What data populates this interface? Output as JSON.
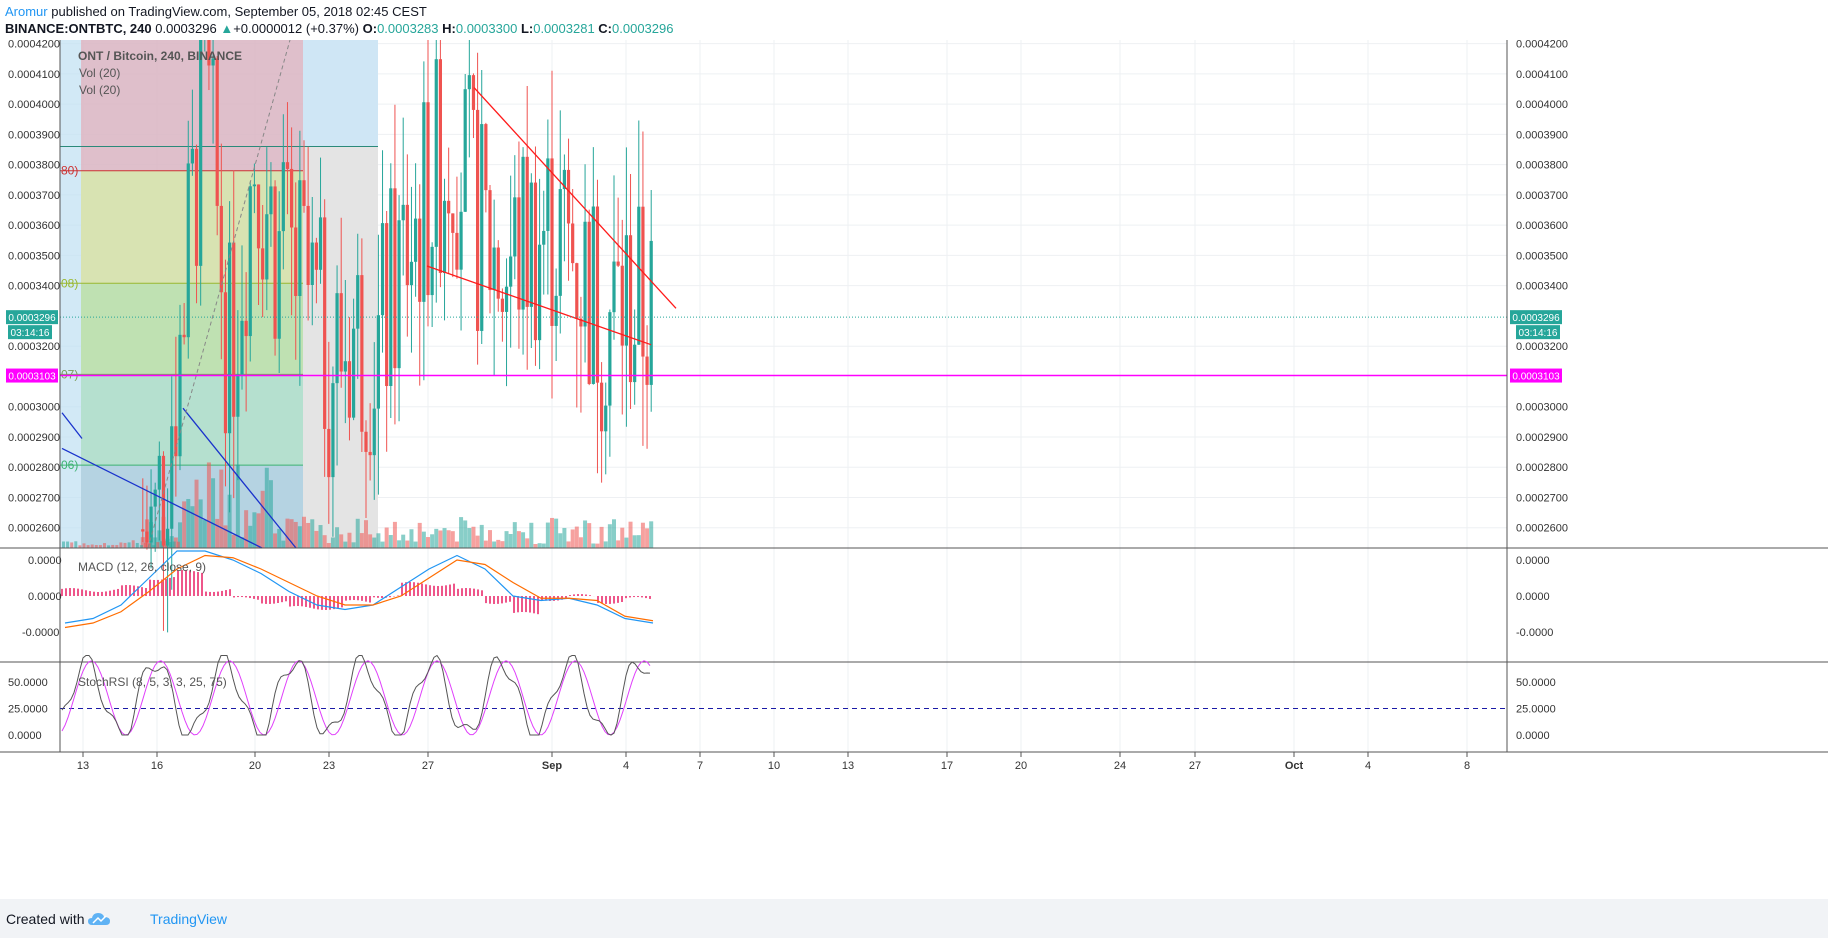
{
  "header": {
    "author": "Aromur",
    "published_text": "published on TradingView.com, September 05, 2018 02:45 CEST",
    "symbol_line": "BINANCE:ONTBTC, 240",
    "price": "0.0003296",
    "change": "+0.0000012 (+0.37%)",
    "o_label": "O:",
    "o_value": "0.0003283",
    "h_label": "H:",
    "h_value": "0.0003300",
    "l_label": "L:",
    "l_value": "0.0003281",
    "c_label": "C:",
    "c_value": "0.0003296"
  },
  "footer": {
    "created_with": "Created with",
    "brand": "TradingView"
  },
  "colors": {
    "up": "#26a69a",
    "down": "#ef5350",
    "magenta": "#ff00ff",
    "trend": "#ff1a1a",
    "blue": "#1a33cc",
    "macd": "#2196f3",
    "signal": "#ff6d00",
    "hist": "#e91e63",
    "stoch_k": "#555555",
    "stoch_d": "#e040fb"
  },
  "chart_data": [
    {
      "type": "candlestick",
      "title": "ONT / Bitcoin, 240, BINANCE",
      "legend": [
        "Vol (20)",
        "Vol (20)"
      ],
      "x_ticks": [
        "13",
        "16",
        "20",
        "23",
        "27",
        "Sep",
        "4",
        "7",
        "10",
        "13",
        "17",
        "20",
        "24",
        "27",
        "Oct",
        "4",
        "8"
      ],
      "y_ticks": [
        "0.0004200",
        "0.0004100",
        "0.0004000",
        "0.0003900",
        "0.0003800",
        "0.0003700",
        "0.0003600",
        "0.0003500",
        "0.0003400",
        "0.0003200",
        "0.0003000",
        "0.0002900",
        "0.0002800",
        "0.0002700",
        "0.0002600"
      ],
      "ylim": [
        0.0002533,
        0.0004212
      ],
      "current_price_label": "0.0003296",
      "countdown_label": "03:14:16",
      "horizontal_line_label": "0.0003103",
      "horizontal_line_value": 0.0003103,
      "fib_labels": [
        "80)",
        "08)",
        "07)",
        "06)"
      ],
      "fib_values": [
        0.000378,
        0.0003408,
        0.0003107,
        0.0002807
      ],
      "close_path_x": [
        "2018-08-12",
        "2018-08-14",
        "2018-08-16",
        "2018-08-17",
        "2018-08-18",
        "2018-08-19",
        "2018-08-20",
        "2018-08-21",
        "2018-08-22",
        "2018-08-23",
        "2018-08-24",
        "2018-08-25",
        "2018-08-26",
        "2018-08-27",
        "2018-08-28",
        "2018-08-29",
        "2018-08-30",
        "2018-08-31",
        "2018-09-01",
        "2018-09-02",
        "2018-09-03",
        "2018-09-04",
        "2018-09-05"
      ],
      "close_path_y": [
        0.000256,
        0.000258,
        0.00026,
        0.00032,
        0.000409,
        0.000315,
        0.000385,
        0.00035,
        0.00034,
        0.000315,
        0.000325,
        0.00032,
        0.00035,
        0.00037,
        0.00039,
        0.00036,
        0.000345,
        0.000355,
        0.00036,
        0.00035,
        0.00033,
        0.000335,
        0.0003296
      ]
    },
    {
      "type": "line",
      "title": "MACD (12, 26, close, 9)",
      "y_ticks": [
        "0.0000",
        "0.0000",
        "-0.0000"
      ],
      "series": [
        {
          "values": [
            -0.6,
            -0.5,
            -0.2,
            0.4,
            1.0,
            1.0,
            0.8,
            0.5,
            0.1,
            -0.2,
            -0.3,
            -0.2,
            0.2,
            0.6,
            0.9,
            0.6,
            0.0,
            -0.1,
            -0.05,
            -0.2,
            -0.5,
            -0.6
          ]
        },
        {
          "values": [
            -0.7,
            -0.6,
            -0.35,
            0.1,
            0.6,
            0.9,
            0.85,
            0.6,
            0.3,
            0.0,
            -0.2,
            -0.2,
            0.0,
            0.4,
            0.8,
            0.7,
            0.3,
            -0.05,
            -0.05,
            -0.1,
            -0.45,
            -0.55
          ]
        }
      ]
    },
    {
      "type": "line",
      "title": "StochRSI (8, 5, 3, 3, 25, 75)",
      "y_ticks": [
        "50.0000",
        "25.0000",
        "0.0000"
      ],
      "reference_line": 25
    }
  ]
}
